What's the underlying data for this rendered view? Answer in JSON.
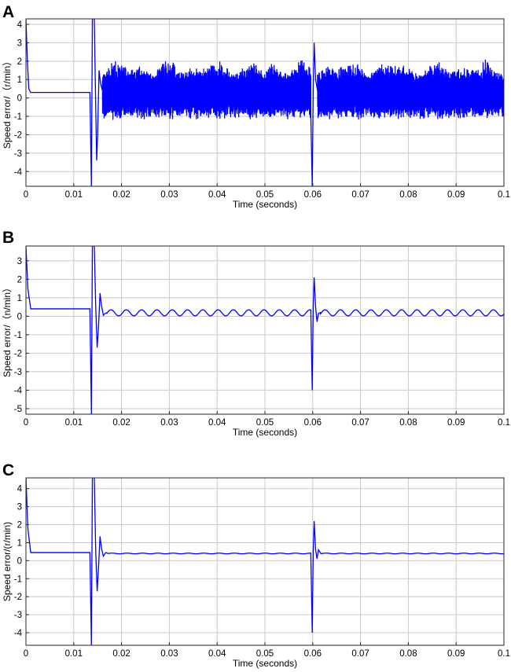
{
  "accent_color": "#0000ff",
  "chart_data": [
    {
      "type": "line",
      "panel_label": "A",
      "xlabel": "Time (seconds)",
      "ylabel": "Speed error/（r/min）",
      "xlim": [
        0,
        0.1
      ],
      "ylim": [
        -4.8,
        4.3
      ],
      "x_ticks": [
        0,
        0.01,
        0.02,
        0.03,
        0.04,
        0.05,
        0.06,
        0.07,
        0.08,
        0.09,
        0.1
      ],
      "y_ticks": [
        -4,
        -3,
        -2,
        -1,
        0,
        1,
        2,
        3,
        4
      ],
      "grid": true,
      "series": [
        {
          "color": "#0000ff",
          "profile": "noisy",
          "segments": [
            {
              "x": [
                0.0,
                0.0003,
                0.0006,
                0.001
              ],
              "y": [
                4.3,
                2.0,
                0.5,
                0.3
              ]
            },
            {
              "x": [
                0.0137,
                0.0139,
                0.0143,
                0.0146,
                0.0148,
                0.015,
                0.0153,
                0.0156,
                0.016
              ],
              "y": [
                -4.8,
                4.3,
                4.3,
                -0.5,
                -3.4,
                -2.0,
                1.5,
                0.8,
                0.4
              ]
            },
            {
              "x": [
                0.0596,
                0.0599,
                0.0601,
                0.0603,
                0.0606,
                0.061
              ],
              "y": [
                -1.0,
                -4.8,
                0.5,
                3.0,
                1.0,
                0.4
              ]
            }
          ],
          "band": {
            "x_start": 0.016,
            "x_end": 0.1,
            "center": 0.4,
            "upper_range": [
              1.2,
              2.3
            ],
            "lower_range": [
              -0.6,
              -1.2
            ]
          }
        }
      ]
    },
    {
      "type": "line",
      "panel_label": "B",
      "xlabel": "Time (seconds)",
      "ylabel": "Speed error/（n/min）",
      "xlim": [
        0,
        0.1
      ],
      "ylim": [
        -5.3,
        3.8
      ],
      "x_ticks": [
        0,
        0.01,
        0.02,
        0.03,
        0.04,
        0.05,
        0.06,
        0.07,
        0.08,
        0.09,
        0.1
      ],
      "y_ticks": [
        -5,
        -4,
        -3,
        -2,
        -1,
        0,
        1,
        2,
        3
      ],
      "grid": true,
      "series": [
        {
          "color": "#0000ff",
          "profile": "ripple",
          "segments": [
            {
              "x": [
                0.0,
                0.0004,
                0.001
              ],
              "y": [
                3.8,
                1.5,
                0.4
              ]
            },
            {
              "x": [
                0.0137,
                0.0139,
                0.0143,
                0.0146,
                0.0149,
                0.0152,
                0.0155,
                0.0158,
                0.0162,
                0.0166,
                0.017
              ],
              "y": [
                -5.3,
                3.8,
                3.8,
                0.5,
                -1.7,
                -0.5,
                1.25,
                0.6,
                0.05,
                0.15,
                0.2
              ]
            },
            {
              "x": [
                0.0596,
                0.0599,
                0.0601,
                0.0603,
                0.0606,
                0.0609,
                0.0612,
                0.0616
              ],
              "y": [
                0.3,
                -4.0,
                0.5,
                2.1,
                0.5,
                -0.3,
                0.15,
                0.2
              ]
            }
          ],
          "ripple": {
            "x_start": 0.017,
            "x_end": 0.1,
            "min": 0.02,
            "max": 0.35,
            "period": 0.0032
          }
        }
      ]
    },
    {
      "type": "line",
      "panel_label": "C",
      "xlabel": "Time (seconds)",
      "ylabel": "Speed error/(r/min)",
      "xlim": [
        0,
        0.1
      ],
      "ylim": [
        -4.7,
        4.6
      ],
      "x_ticks": [
        0,
        0.01,
        0.02,
        0.03,
        0.04,
        0.05,
        0.06,
        0.07,
        0.08,
        0.09,
        0.1
      ],
      "y_ticks": [
        -4,
        -3,
        -2,
        -1,
        0,
        1,
        2,
        3,
        4
      ],
      "grid": true,
      "series": [
        {
          "color": "#0000ff",
          "profile": "flat",
          "segments": [
            {
              "x": [
                0.0,
                0.0004,
                0.001
              ],
              "y": [
                4.6,
                1.8,
                0.45
              ]
            },
            {
              "x": [
                0.0137,
                0.0139,
                0.0143,
                0.0146,
                0.0149,
                0.0152,
                0.0155,
                0.0158,
                0.0162,
                0.0167,
                0.0172
              ],
              "y": [
                -4.7,
                4.6,
                4.6,
                0.5,
                -1.7,
                -0.3,
                1.35,
                0.7,
                0.25,
                0.45,
                0.4
              ]
            },
            {
              "x": [
                0.0596,
                0.0599,
                0.0601,
                0.0603,
                0.0606,
                0.0609,
                0.0612,
                0.0617
              ],
              "y": [
                0.35,
                -4.0,
                0.5,
                2.2,
                0.6,
                0.1,
                0.6,
                0.4
              ]
            }
          ],
          "steady": {
            "x_start": 0.0172,
            "x_end": 0.1,
            "value": 0.4,
            "amplitude": 0.02,
            "period": 0.0032
          }
        }
      ]
    }
  ]
}
